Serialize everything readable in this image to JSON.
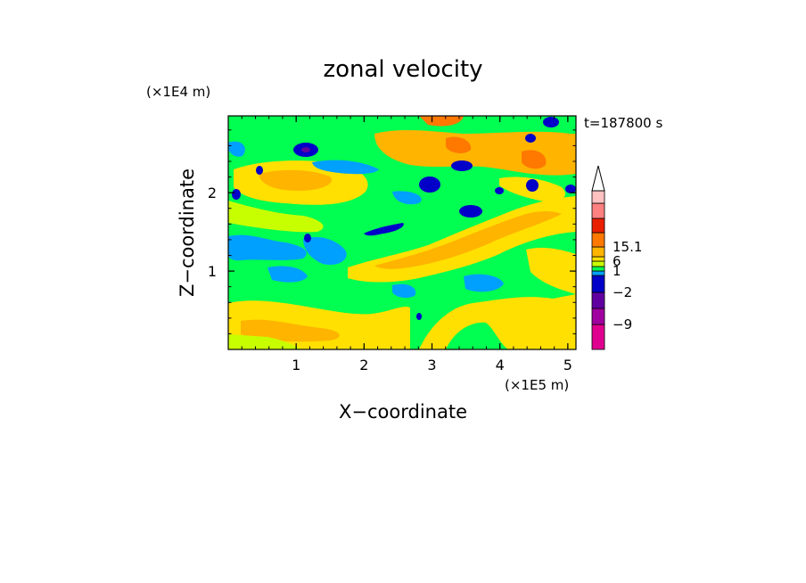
{
  "chart_data": {
    "type": "heatmap",
    "title": "zonal velocity",
    "xlabel": "X−coordinate",
    "ylabel": "Z−coordinate",
    "x_unit": "(×1E5 m)",
    "y_unit": "(×1E4 m)",
    "time_label": "t=187800 s",
    "xlim": [
      0,
      5.12
    ],
    "ylim": [
      0,
      2.98
    ],
    "x_ticks": [
      {
        "v": 1,
        "label": "1"
      },
      {
        "v": 2,
        "label": "2"
      },
      {
        "v": 3,
        "label": "3"
      },
      {
        "v": 4,
        "label": "4"
      },
      {
        "v": 5,
        "label": "5"
      }
    ],
    "y_ticks": [
      {
        "v": 1,
        "label": "1"
      },
      {
        "v": 2,
        "label": "2"
      }
    ],
    "colorbar": {
      "arrow_color": "#ffffff",
      "labeled_levels": [
        {
          "level": 9,
          "label": "15.1"
        },
        {
          "level": 7,
          "label": "6"
        },
        {
          "level": 5,
          "label": "1"
        },
        {
          "level": 3,
          "label": "−2"
        },
        {
          "level": 1,
          "label": "−9"
        }
      ],
      "bands": [
        {
          "color": "#e00090"
        },
        {
          "color": "#a000a0"
        },
        {
          "color": "#6000a0"
        },
        {
          "color": "#0000c8"
        },
        {
          "color": "#00a0ff"
        },
        {
          "color": "#00ff50"
        },
        {
          "color": "#c8ff00"
        },
        {
          "color": "#ffe000"
        },
        {
          "color": "#ffb400"
        },
        {
          "color": "#ff7800"
        },
        {
          "color": "#e82000"
        },
        {
          "color": "#ff8080"
        },
        {
          "color": "#ffc0c0"
        }
      ]
    }
  }
}
